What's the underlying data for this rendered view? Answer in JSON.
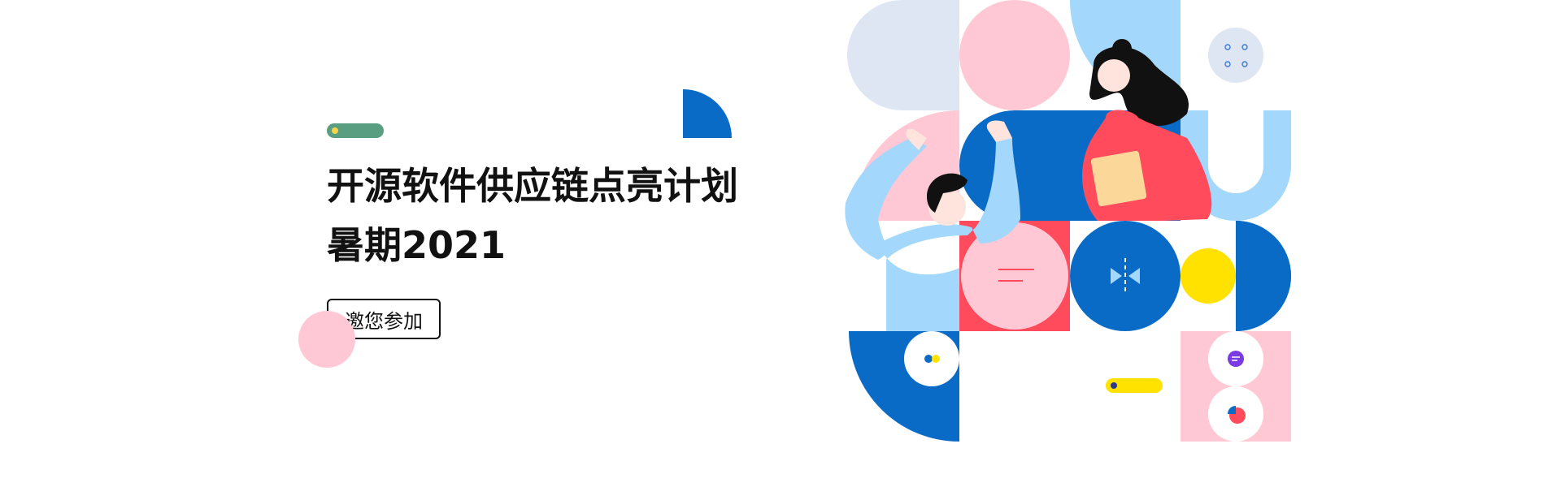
{
  "banner": {
    "title_line1": "开源软件供应链点亮计划",
    "title_line2": "暑期2021",
    "join_button_label": "邀您参加"
  },
  "colors": {
    "blue": "#0a6bc7",
    "light_blue": "#a3d8fc",
    "pink": "#ffc8d4",
    "red": "#ff4b5c",
    "yellow": "#ffe200",
    "green_pill": "#5a9e82",
    "lavender": "#dfe6f3"
  },
  "icons": [
    "split-arrows-icon",
    "chat-bubble-icon",
    "pie-chart-icon",
    "toggle-icon",
    "dots-grid-icon"
  ]
}
